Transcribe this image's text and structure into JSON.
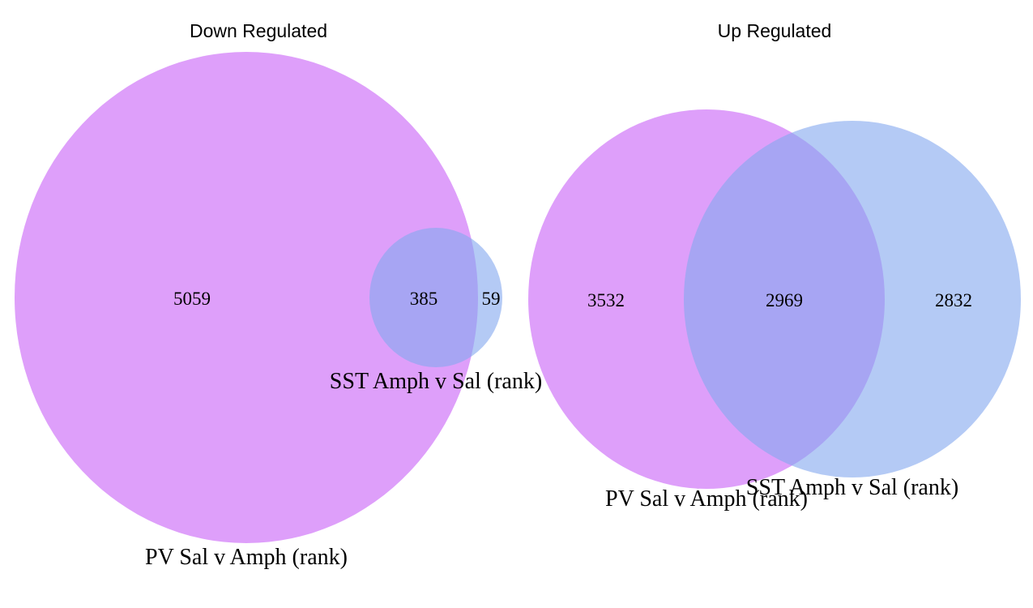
{
  "colors": {
    "set_a": "#d17af8",
    "set_b": "#86a9ef",
    "background": "#ffffff"
  },
  "venn_down": {
    "title": "Down Regulated",
    "set_a_label": "PV Sal v Amph (rank)",
    "set_b_label": "SST Amph v Sal (rank)",
    "only_a": "5059",
    "both": "385",
    "only_b": "59"
  },
  "venn_up": {
    "title": "Up Regulated",
    "set_a_label": "PV Sal v Amph (rank)",
    "set_b_label": "SST Amph v Sal (rank)",
    "only_a": "3532",
    "both": "2969",
    "only_b": "2832"
  }
}
